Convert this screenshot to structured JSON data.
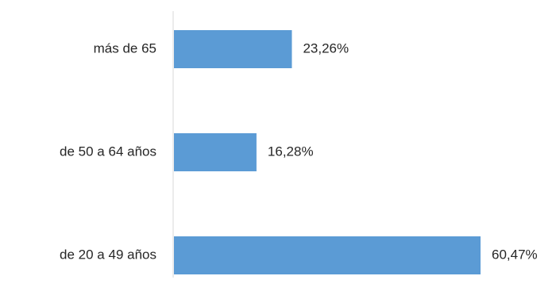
{
  "chart_data": {
    "type": "bar",
    "orientation": "horizontal",
    "categories": [
      "más de 65",
      "de 50 a 64 años",
      "de 20 a 49 años"
    ],
    "values": [
      23.26,
      16.28,
      60.47
    ],
    "value_labels": [
      "23,26%",
      "16,28%",
      "60,47%"
    ],
    "unit": "%",
    "title": "",
    "xlabel": "",
    "ylabel": "",
    "xlim": [
      0,
      60.47
    ],
    "grid": false,
    "legend": "none",
    "colors": {
      "bar": "#5B9BD5",
      "axis": "#D9D9D9",
      "text": "#262626"
    }
  }
}
